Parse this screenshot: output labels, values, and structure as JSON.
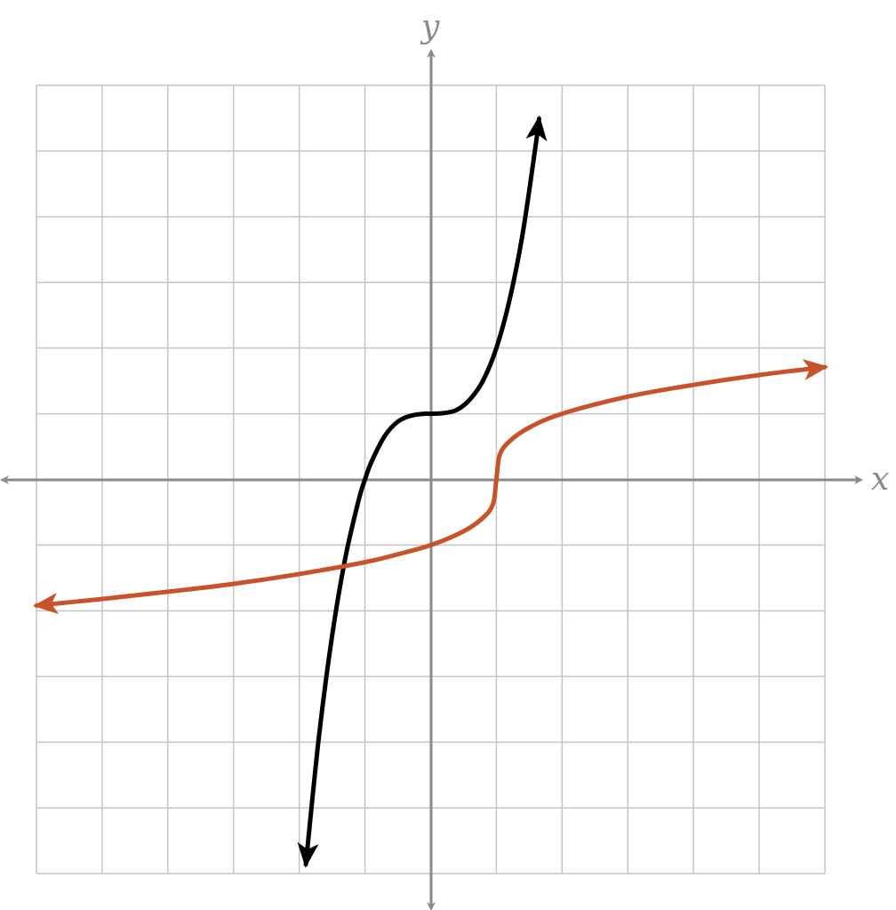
{
  "chart_data": {
    "type": "line",
    "xlabel": "x",
    "ylabel": "y",
    "xlim": [
      -6,
      6
    ],
    "ylim": [
      -6,
      6
    ],
    "grid": true,
    "series": [
      {
        "color": "#000000",
        "x": [
          -1.9,
          -1.7,
          -1.5,
          -1.3,
          -1.1,
          -1.0,
          -0.9,
          -0.7,
          -0.5,
          -0.3,
          -0.1,
          0.0,
          0.2,
          0.4,
          0.6,
          0.8,
          1.0,
          1.2,
          1.4,
          1.6,
          1.65
        ],
        "y": [
          -5.86,
          -3.91,
          -2.38,
          -1.2,
          -0.33,
          0.0,
          0.27,
          0.66,
          0.88,
          0.97,
          1.0,
          1.0,
          1.01,
          1.06,
          1.22,
          1.51,
          2.0,
          2.73,
          3.74,
          5.1,
          5.49
        ],
        "arrow_start": true,
        "arrow_end": true
      },
      {
        "color": "#c8532a",
        "x": [
          -6.0,
          -5.0,
          -4.0,
          -3.0,
          -2.0,
          -1.0,
          -0.5,
          0.0,
          0.5,
          0.8,
          0.95,
          1.0,
          1.05,
          1.2,
          1.5,
          2.0,
          3.0,
          4.0,
          5.0,
          6.0
        ],
        "y": [
          -1.92,
          -1.82,
          -1.71,
          -1.59,
          -1.44,
          -1.26,
          -1.14,
          -1.0,
          -0.79,
          -0.58,
          -0.37,
          0.0,
          0.37,
          0.58,
          0.79,
          1.0,
          1.26,
          1.44,
          1.59,
          1.71
        ],
        "arrow_start": true,
        "arrow_end": true
      }
    ]
  }
}
